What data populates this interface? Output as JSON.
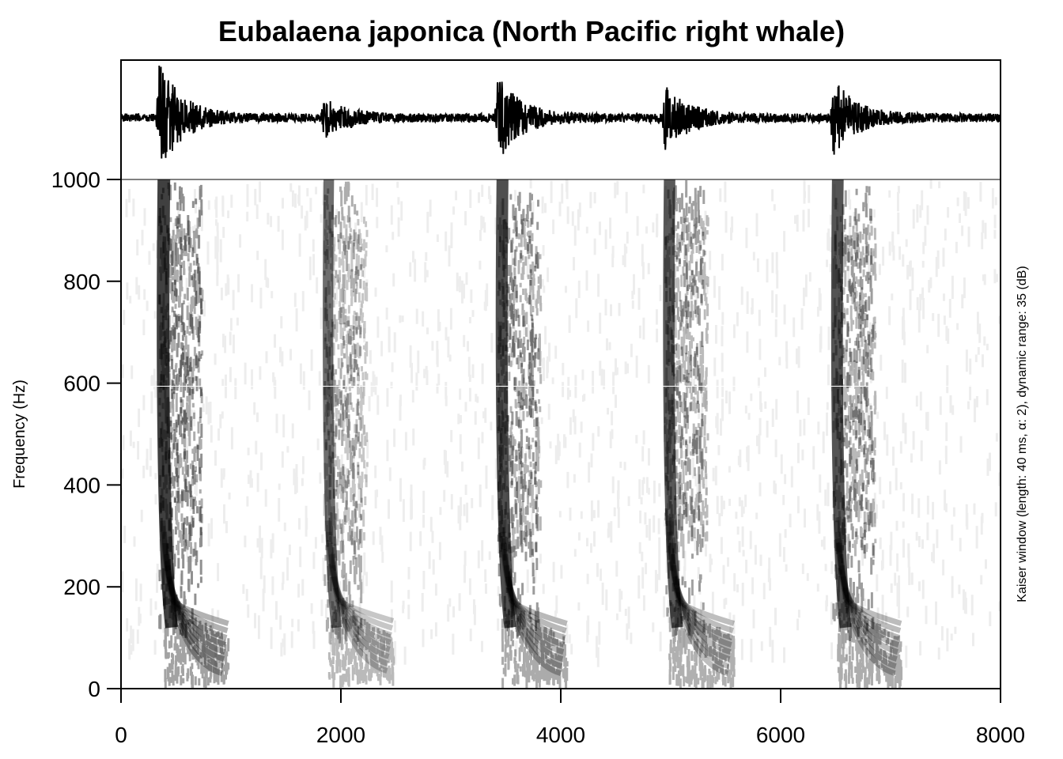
{
  "chart_data": {
    "type": "spectrogram",
    "title": "Eubalaena japonica (North Pacific right whale)",
    "xlabel": "",
    "ylabel": "Frequency (Hz)",
    "side_note": "Kaiser window (length: 40 ms, α: 2), dynamic range: 35 (dB)",
    "xlim": [
      0,
      8000
    ],
    "ylim": [
      0,
      1000
    ],
    "x_ticks": [
      0,
      2000,
      4000,
      6000,
      8000
    ],
    "y_ticks": [
      0,
      200,
      400,
      600,
      800,
      1000
    ],
    "grid": false,
    "colormap": "grayscale (white = quiet, black = loud)",
    "calls": [
      {
        "onset": 350,
        "offset": 1000,
        "low_freq": 20,
        "intensity": 1.0
      },
      {
        "onset": 1850,
        "offset": 2500,
        "low_freq": 25,
        "intensity": 0.55
      },
      {
        "onset": 3430,
        "offset": 4080,
        "low_freq": 20,
        "intensity": 0.85
      },
      {
        "onset": 4950,
        "offset": 5600,
        "low_freq": 20,
        "intensity": 0.75
      },
      {
        "onset": 6480,
        "offset": 7120,
        "low_freq": 20,
        "intensity": 0.8
      }
    ],
    "waveform": {
      "baseline_noise": 0.08,
      "bursts": [
        {
          "onset": 350,
          "peak": 1.0
        },
        {
          "onset": 1850,
          "peak": 0.35
        },
        {
          "onset": 3430,
          "peak": 0.75
        },
        {
          "onset": 4950,
          "peak": 0.6
        },
        {
          "onset": 6480,
          "peak": 0.7
        }
      ]
    }
  }
}
